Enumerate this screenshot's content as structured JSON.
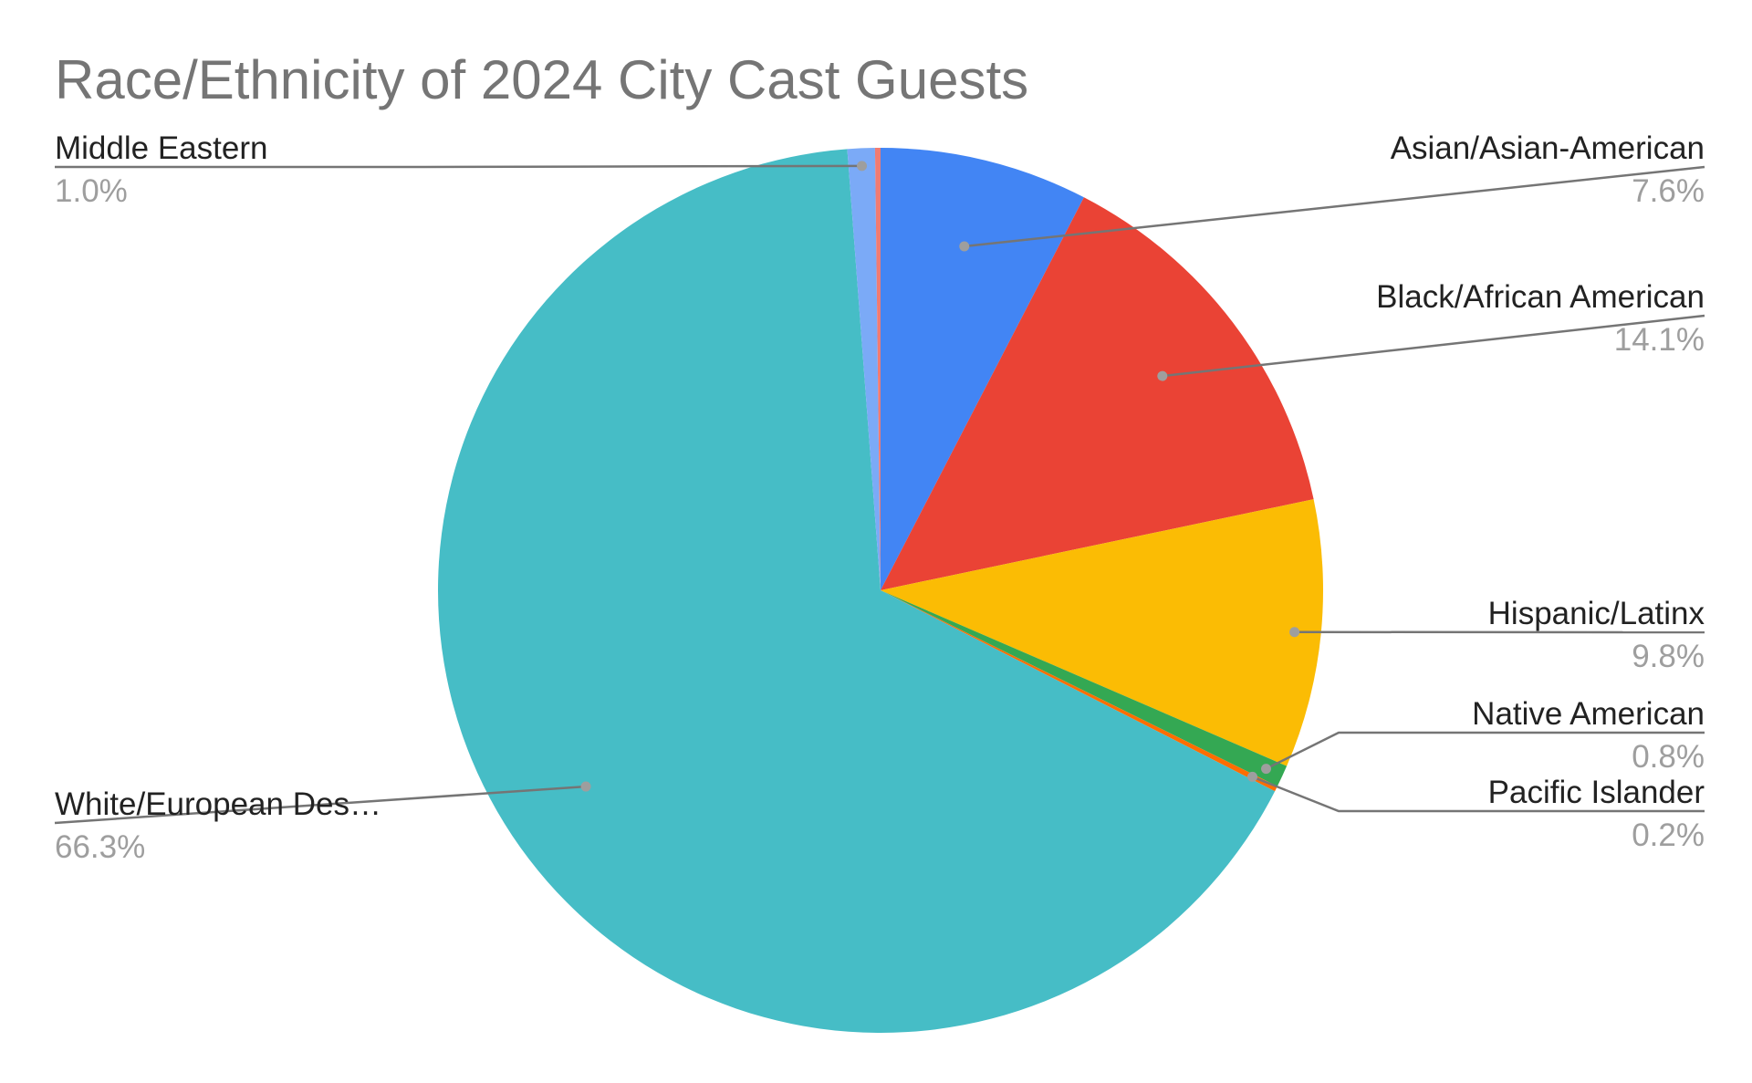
{
  "chart_data": {
    "type": "pie",
    "title": "Race/Ethnicity of 2024 City Cast Guests",
    "slices": [
      {
        "name": "Asian/Asian-American",
        "label": "Asian/Asian-American",
        "value": 7.6,
        "pct_label": "7.6%",
        "color": "#4285f4"
      },
      {
        "name": "Black/African American",
        "label": "Black/African American",
        "value": 14.1,
        "pct_label": "14.1%",
        "color": "#ea4335"
      },
      {
        "name": "Hispanic/Latinx",
        "label": "Hispanic/Latinx",
        "value": 9.8,
        "pct_label": "9.8%",
        "color": "#fbbc04"
      },
      {
        "name": "Native American",
        "label": "Native American",
        "value": 0.8,
        "pct_label": "0.8%",
        "color": "#34a853"
      },
      {
        "name": "Pacific Islander",
        "label": "Pacific Islander",
        "value": 0.2,
        "pct_label": "0.2%",
        "color": "#ff6d01"
      },
      {
        "name": "White/European Descent",
        "label": "White/European Des…",
        "value": 66.3,
        "pct_label": "66.3%",
        "color": "#46bdc6"
      },
      {
        "name": "Middle Eastern",
        "label": "Middle Eastern",
        "value": 1.0,
        "pct_label": "1.0%",
        "color": "#7baaf7"
      },
      {
        "name": "",
        "label": "",
        "value": 0.2,
        "pct_label": "",
        "color": "#f07b72"
      }
    ],
    "start_angle": "12 o'clock",
    "direction": "clockwise",
    "legend": "none"
  }
}
